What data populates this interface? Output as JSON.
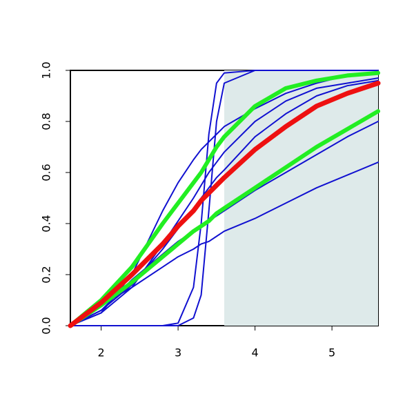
{
  "chart_data": {
    "type": "line",
    "x": [
      1.6,
      2.0,
      2.4,
      2.8,
      3.0,
      3.2,
      3.3,
      3.4,
      3.5,
      3.6,
      4.0,
      4.4,
      4.8,
      5.2,
      5.6
    ],
    "series": [
      {
        "color": "#1010d0",
        "width": 2,
        "values": [
          0,
          0.08,
          0.15,
          0.23,
          0.27,
          0.3,
          0.32,
          0.33,
          0.35,
          0.37,
          0.42,
          0.48,
          0.54,
          0.59,
          0.64
        ]
      },
      {
        "color": "#1010d0",
        "width": 2,
        "values": [
          0,
          0.06,
          0.18,
          0.28,
          0.33,
          0.37,
          0.39,
          0.41,
          0.43,
          0.45,
          0.53,
          0.6,
          0.67,
          0.74,
          0.8
        ]
      },
      {
        "color": "#1010d0",
        "width": 2,
        "values": [
          0,
          0,
          0,
          0,
          0.01,
          0.15,
          0.4,
          0.75,
          0.95,
          0.99,
          1,
          1,
          1,
          1,
          1
        ]
      },
      {
        "color": "#1010d0",
        "width": 2,
        "values": [
          0,
          0,
          0,
          0,
          0,
          0.03,
          0.12,
          0.45,
          0.8,
          0.95,
          1,
          1,
          1,
          1,
          1
        ]
      },
      {
        "color": "#1010d0",
        "width": 2,
        "values": [
          0,
          0.05,
          0.2,
          0.45,
          0.56,
          0.65,
          0.69,
          0.72,
          0.75,
          0.78,
          0.85,
          0.91,
          0.95,
          0.98,
          0.99
        ]
      },
      {
        "color": "#1010d0",
        "width": 2,
        "values": [
          0,
          0.05,
          0.15,
          0.32,
          0.41,
          0.5,
          0.55,
          0.6,
          0.64,
          0.68,
          0.8,
          0.88,
          0.93,
          0.95,
          0.97
        ]
      },
      {
        "color": "#1010d0",
        "width": 2,
        "values": [
          0,
          0.06,
          0.16,
          0.3,
          0.38,
          0.46,
          0.5,
          0.54,
          0.58,
          0.61,
          0.74,
          0.83,
          0.9,
          0.94,
          0.96
        ]
      },
      {
        "color": "#22ee22",
        "width": 6,
        "values": [
          0,
          0.1,
          0.23,
          0.4,
          0.48,
          0.56,
          0.6,
          0.65,
          0.7,
          0.74,
          0.86,
          0.93,
          0.96,
          0.98,
          0.99
        ]
      },
      {
        "color": "#22ee22",
        "width": 6,
        "values": [
          0,
          0.08,
          0.17,
          0.27,
          0.32,
          0.37,
          0.39,
          0.41,
          0.44,
          0.46,
          0.54,
          0.62,
          0.7,
          0.77,
          0.84
        ]
      },
      {
        "color": "#ee1010",
        "width": 7,
        "values": [
          0,
          0.09,
          0.2,
          0.32,
          0.39,
          0.45,
          0.49,
          0.52,
          0.55,
          0.58,
          0.69,
          0.78,
          0.86,
          0.91,
          0.95
        ]
      }
    ],
    "shade": {
      "xlim": [
        3.6,
        5.6
      ],
      "color": "#deeaea"
    },
    "xlim": [
      1.6,
      5.6
    ],
    "xticks": [
      2,
      3,
      4,
      5
    ],
    "ylim": [
      0,
      1
    ],
    "yticks": [
      {
        "value": 0,
        "label": "0.0"
      },
      0.2,
      0.4,
      0.6,
      0.8,
      {
        "value": 1,
        "label": "1.0"
      }
    ]
  }
}
